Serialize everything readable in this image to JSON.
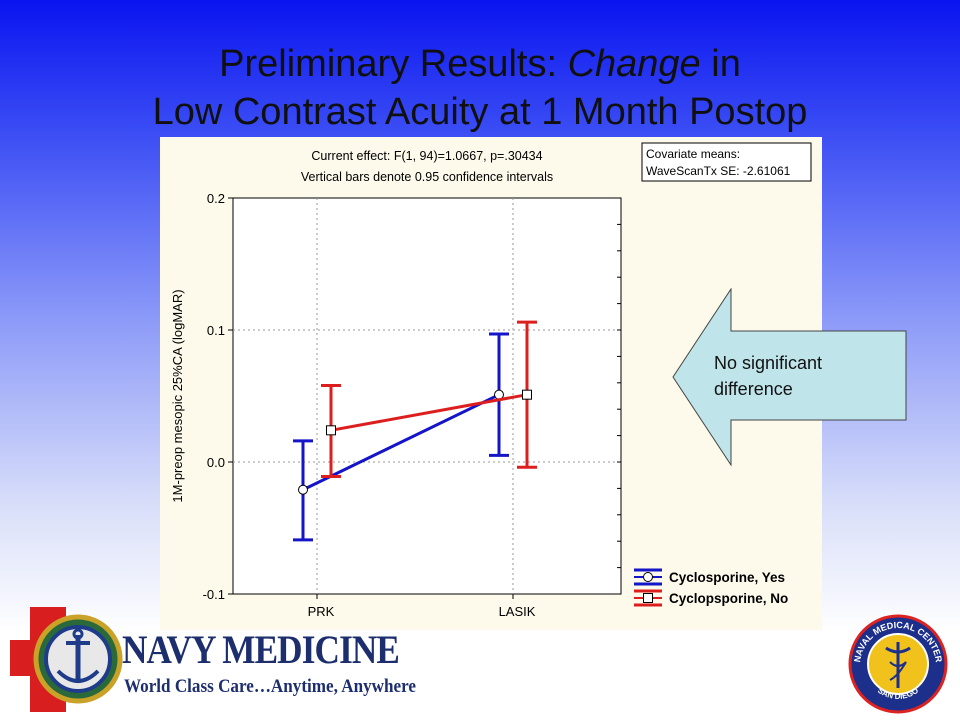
{
  "slide": {
    "title_prefix": "Preliminary Results: ",
    "title_emphasis": "Change",
    "title_suffix": " in",
    "title_line2": "Low Contrast Acuity at 1 Month Postop"
  },
  "callout": {
    "text_line1": "No significant",
    "text_line2": "difference"
  },
  "branding": {
    "left_logo_title": "NAVY MEDICINE",
    "left_logo_tagline": "World Class Care…Anytime, Anywhere",
    "right_seal_text_top": "NAVAL MEDICAL CENTER",
    "right_seal_text_bottom": "SAN DIEGO"
  },
  "colors": {
    "series_yes": "#1414c8",
    "series_no": "#dc1e1e",
    "panel_bg": "#fdf9eb",
    "callout_fill": "#bfe4ea"
  },
  "chart_data": {
    "type": "line",
    "header_line1": "Current effect: F(1, 94)=1.0667, p=.30434",
    "header_line2": "Vertical bars denote 0.95 confidence intervals",
    "covariate_line1": "Covariate means:",
    "covariate_line2": "WaveScanTx SE: -2.61061",
    "ylabel": "1M-preop mesopic 25%CA (logMAR)",
    "xlabel": "",
    "categories": [
      "PRK",
      "LASIK"
    ],
    "ylim": [
      -0.1,
      0.2
    ],
    "yticks": [
      -0.1,
      0.0,
      0.1,
      0.2
    ],
    "ytick_labels": [
      "-0.1",
      "0.0",
      "0.1",
      "0.2"
    ],
    "grid": true,
    "legend_position": "bottom-right",
    "series": [
      {
        "name": "Cyclosporine, Yes",
        "marker": "circle",
        "values": [
          -0.021,
          0.051
        ],
        "ci_low": [
          -0.059,
          0.005
        ],
        "ci_high": [
          0.016,
          0.097
        ]
      },
      {
        "name": "Cyclopsporine, No",
        "marker": "square",
        "values": [
          0.024,
          0.051
        ],
        "ci_low": [
          -0.011,
          -0.004
        ],
        "ci_high": [
          0.058,
          0.106
        ]
      }
    ]
  }
}
